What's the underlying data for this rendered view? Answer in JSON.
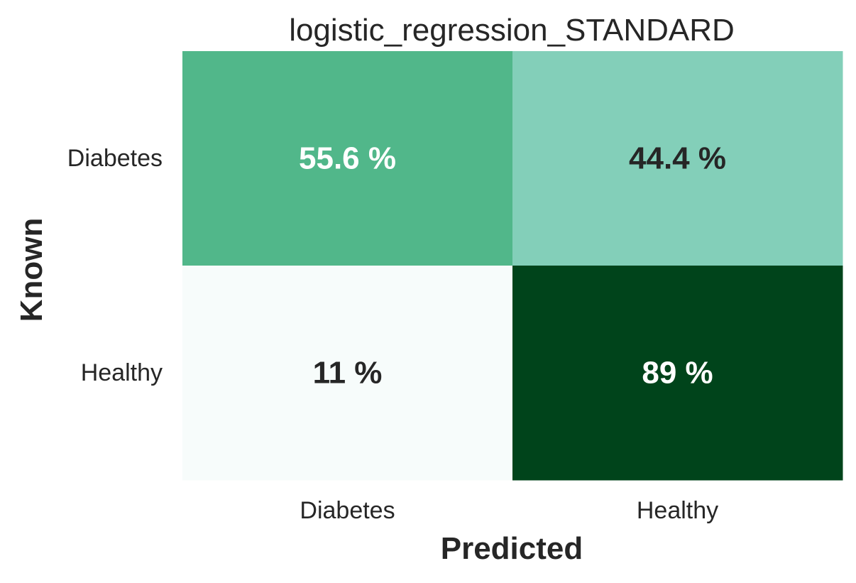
{
  "chart_data": {
    "type": "heatmap",
    "title": "logistic_regression_STANDARD",
    "xlabel": "Predicted",
    "ylabel": "Known",
    "x_categories": [
      "Diabetes",
      "Healthy"
    ],
    "y_categories": [
      "Diabetes",
      "Healthy"
    ],
    "values": [
      [
        55.6,
        44.4
      ],
      [
        11,
        89
      ]
    ],
    "cell_labels": [
      [
        "55.6 %",
        "44.4 %"
      ],
      [
        "11 %",
        "89 %"
      ]
    ],
    "colors": {
      "min": "#f7fcfb",
      "max": "#00441b",
      "text_dark": "#262626",
      "text_light": "#ffffff"
    },
    "colorbar": false,
    "grid": false
  }
}
